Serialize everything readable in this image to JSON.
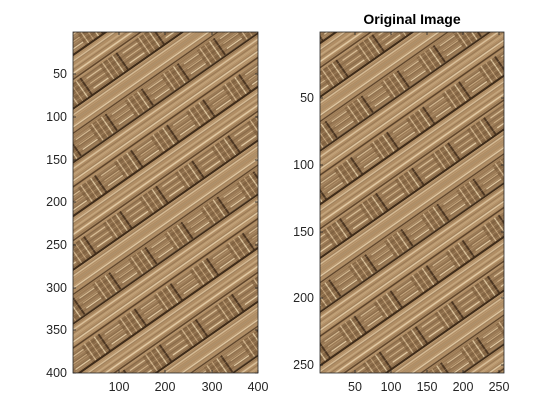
{
  "figure": {
    "title_right": "Original Image",
    "colors": {
      "axis": "#262626",
      "bg": "#ffffff",
      "texture_base": "#9b7a55"
    }
  },
  "axes_left": {
    "y_ticks": [
      "50",
      "100",
      "150",
      "200",
      "250",
      "300",
      "350",
      "400"
    ],
    "x_ticks": [
      "100",
      "200",
      "300",
      "400"
    ]
  },
  "axes_right": {
    "y_ticks": [
      "50",
      "100",
      "150",
      "200",
      "250"
    ],
    "x_ticks": [
      "50",
      "100",
      "150",
      "200",
      "250"
    ]
  }
}
